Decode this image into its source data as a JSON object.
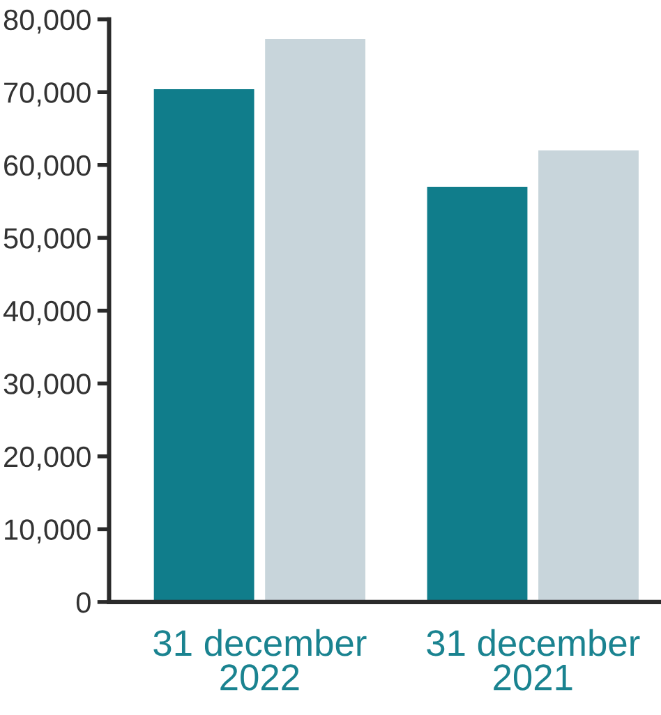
{
  "chart_data": {
    "type": "bar",
    "categories": [
      "31 december\n2022",
      "31 december\n2021"
    ],
    "series": [
      {
        "color": "#107d8b",
        "values": [
          70400,
          57000
        ]
      },
      {
        "color": "#c8d5db",
        "values": [
          77300,
          62000
        ]
      }
    ],
    "ylim": [
      0,
      80000
    ],
    "yticks": [
      {
        "value": 0,
        "label": "0"
      },
      {
        "value": 10000,
        "label": "10,000"
      },
      {
        "value": 20000,
        "label": "20,000"
      },
      {
        "value": 30000,
        "label": "30,000"
      },
      {
        "value": 40000,
        "label": "40,000"
      },
      {
        "value": 50000,
        "label": "50,000"
      },
      {
        "value": 60000,
        "label": "60,000"
      },
      {
        "value": 70000,
        "label": "70,000"
      },
      {
        "value": 80000,
        "label": "80,000"
      }
    ],
    "grid": false,
    "legend": false
  }
}
